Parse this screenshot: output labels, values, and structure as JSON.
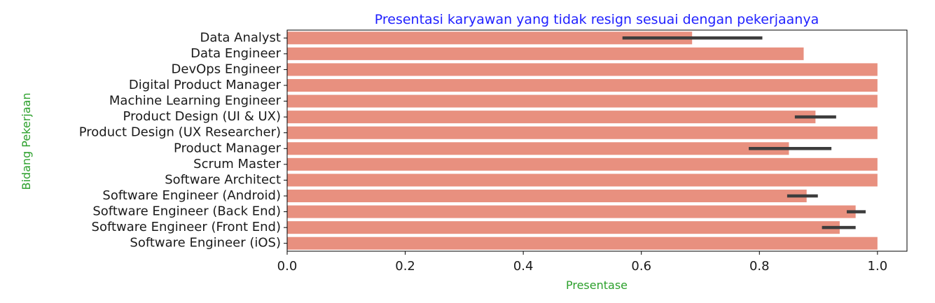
{
  "chart_data": {
    "type": "bar",
    "orientation": "horizontal",
    "title": "Presentasi karyawan yang tidak resign sesuai dengan pekerjaanya",
    "xlabel": "Presentase",
    "ylabel": "Bidang Pekerjaan",
    "xlim": [
      0,
      1.05
    ],
    "xticks": [
      "0.0",
      "0.2",
      "0.4",
      "0.6",
      "0.8",
      "1.0"
    ],
    "grid": false,
    "colors": {
      "bar": "#e8907f",
      "error_bar": "#3d3d3d",
      "title": "#1f1fff",
      "axis_label": "#2ca02c"
    },
    "categories": [
      "Data Analyst",
      "Data Engineer",
      "DevOps Engineer",
      "Digital Product Manager",
      "Machine Learning Engineer",
      "Product Design (UI & UX)",
      "Product Design (UX Researcher)",
      "Product Manager",
      "Scrum Master",
      "Software Architect",
      "Software Engineer (Android)",
      "Software Engineer (Back End)",
      "Software Engineer (Front End)",
      "Software Engineer (iOS)"
    ],
    "values": [
      0.686,
      0.875,
      1.0,
      1.0,
      1.0,
      0.895,
      1.0,
      0.85,
      1.0,
      1.0,
      0.88,
      0.963,
      0.936,
      1.0
    ],
    "error_low": [
      0.568,
      null,
      null,
      null,
      null,
      0.86,
      null,
      0.782,
      null,
      null,
      0.847,
      0.948,
      0.906,
      null
    ],
    "error_high": [
      0.805,
      null,
      null,
      null,
      null,
      0.93,
      null,
      0.922,
      null,
      null,
      0.899,
      0.98,
      0.963,
      null
    ]
  }
}
